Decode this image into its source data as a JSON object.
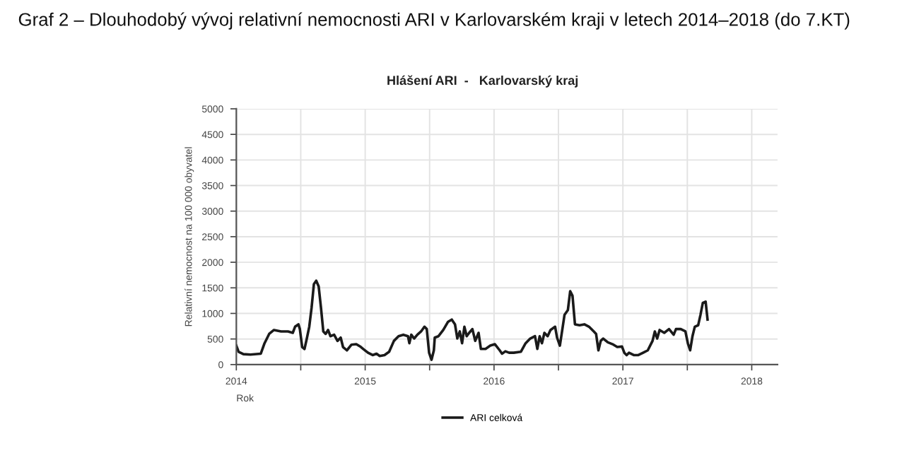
{
  "chart_data": {
    "type": "line",
    "title": "Graf 2 – Dlouhodobý vývoj relativní nemocnosti ARI v Karlovarském kraji v letech 2014–2018 (do 7.KT)",
    "subtitle": "Hlášení ARI  -   Karlovarský kraj",
    "xlabel": "Rok",
    "ylabel": "Relativní nemocnost na 100 000 obyvatel",
    "xlim": [
      2014,
      2018.2
    ],
    "xticks": [
      2014,
      {
        "value": 2014.5,
        "label": null
      },
      2015,
      {
        "value": 2015.5,
        "label": null
      },
      2016,
      {
        "value": 2016.5,
        "label": null
      },
      2017,
      {
        "value": 2017.5,
        "label": null
      },
      2018
    ],
    "ylim": [
      0,
      5000
    ],
    "yticks": [
      0,
      500,
      1000,
      1500,
      2000,
      2500,
      3000,
      3500,
      4000,
      4500,
      5000
    ],
    "grid": true,
    "legend": "bottom",
    "marker": "none",
    "line_style": "solid",
    "series": [
      {
        "name": "ARI celková",
        "color": "#1a1a1a",
        "x": [
          2014.0,
          2014.018,
          2014.055,
          2014.109,
          2014.19,
          2014.219,
          2014.255,
          2014.292,
          2014.347,
          2014.401,
          2014.438,
          2014.456,
          2014.482,
          2014.493,
          2014.511,
          2014.529,
          2014.547,
          2014.566,
          2014.584,
          2014.602,
          2014.62,
          2014.639,
          2014.657,
          2014.675,
          2014.693,
          2014.712,
          2014.73,
          2014.759,
          2014.785,
          2014.81,
          2014.828,
          2014.858,
          2014.894,
          2014.931,
          2014.967,
          2014.985,
          2015.022,
          2015.058,
          2015.088,
          2015.113,
          2015.15,
          2015.186,
          2015.223,
          2015.259,
          2015.296,
          2015.332,
          2015.343,
          2015.358,
          2015.38,
          2015.405,
          2015.434,
          2015.46,
          2015.478,
          2015.496,
          2015.515,
          2015.533,
          2015.54,
          2015.569,
          2015.606,
          2015.642,
          2015.672,
          2015.697,
          2015.715,
          2015.734,
          2015.752,
          2015.77,
          2015.788,
          2015.807,
          2015.832,
          2015.854,
          2015.88,
          2015.898,
          2015.934,
          2015.971,
          2016.007,
          2016.044,
          2016.062,
          2016.088,
          2016.117,
          2016.153,
          2016.208,
          2016.245,
          2016.281,
          2016.318,
          2016.336,
          2016.354,
          2016.372,
          2016.391,
          2016.416,
          2016.438,
          2016.474,
          2016.489,
          2016.511,
          2016.526,
          2016.547,
          2016.573,
          2016.591,
          2016.609,
          2016.628,
          2016.664,
          2016.701,
          2016.737,
          2016.774,
          2016.792,
          2016.81,
          2016.828,
          2016.847,
          2016.883,
          2016.92,
          2016.956,
          2016.993,
          2017.011,
          2017.029,
          2017.047,
          2017.084,
          2017.12,
          2017.157,
          2017.193,
          2017.23,
          2017.248,
          2017.266,
          2017.285,
          2017.321,
          2017.358,
          2017.394,
          2017.412,
          2017.449,
          2017.485,
          2017.504,
          2017.522,
          2017.54,
          2017.558,
          2017.584,
          2017.602,
          2017.62,
          2017.642,
          2017.657
        ],
        "values": [
          370,
          250,
          204,
          195,
          213,
          417,
          600,
          676,
          648,
          648,
          620,
          740,
          787,
          694,
          343,
          305,
          509,
          740,
          1111,
          1574,
          1639,
          1528,
          1111,
          648,
          600,
          676,
          555,
          583,
          463,
          527,
          343,
          278,
          389,
          398,
          343,
          305,
          231,
          185,
          213,
          167,
          185,
          250,
          463,
          555,
          583,
          555,
          417,
          583,
          509,
          583,
          648,
          740,
          694,
          231,
          93,
          278,
          527,
          555,
          676,
          833,
          880,
          787,
          509,
          648,
          417,
          740,
          555,
          620,
          694,
          463,
          620,
          305,
          305,
          370,
          398,
          278,
          213,
          259,
          231,
          231,
          250,
          417,
          509,
          555,
          305,
          555,
          417,
          620,
          555,
          676,
          740,
          527,
          370,
          620,
          972,
          1065,
          1435,
          1343,
          787,
          768,
          787,
          740,
          648,
          600,
          278,
          463,
          509,
          435,
          398,
          343,
          352,
          231,
          185,
          231,
          185,
          185,
          231,
          278,
          463,
          648,
          509,
          676,
          620,
          694,
          583,
          694,
          694,
          648,
          417,
          278,
          555,
          740,
          768,
          972,
          1204,
          1231,
          880
        ]
      }
    ]
  }
}
